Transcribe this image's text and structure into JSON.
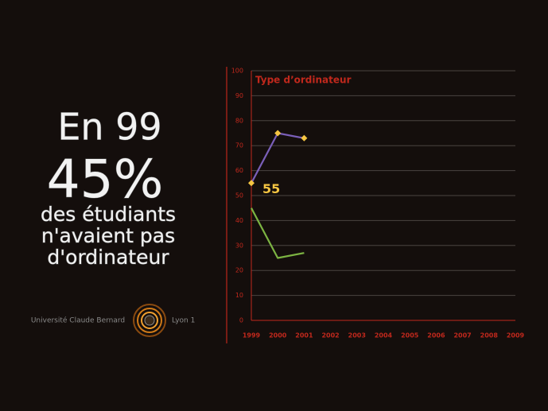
{
  "caption": {
    "line1": "En 99",
    "line2": "45%",
    "line3": "des étudiants",
    "line4": "n'avaient pas",
    "line5": "d'ordinateur"
  },
  "footer": {
    "university": "Université Claude Bernard",
    "city": "Lyon 1"
  },
  "chart_data": {
    "type": "line",
    "title": "Type d’ordinateur",
    "categories": [
      "1999",
      "2000",
      "2001",
      "2002",
      "2003",
      "2004",
      "2005",
      "2006",
      "2007",
      "2008",
      "2009"
    ],
    "series": [
      {
        "color": "#7a5fb8",
        "values": [
          55,
          75,
          73,
          null,
          null,
          null,
          null,
          null,
          null,
          null,
          null
        ]
      },
      {
        "color": "#7cb342",
        "values": [
          45,
          25,
          27,
          null,
          null,
          null,
          null,
          null,
          null,
          null,
          null
        ]
      }
    ],
    "ylim": [
      0,
      100
    ],
    "yticks": [
      0,
      10,
      20,
      30,
      40,
      50,
      60,
      70,
      80,
      90,
      100
    ],
    "grid": true,
    "axis_color": "#c0281c",
    "marker_color": "#f5c542"
  }
}
